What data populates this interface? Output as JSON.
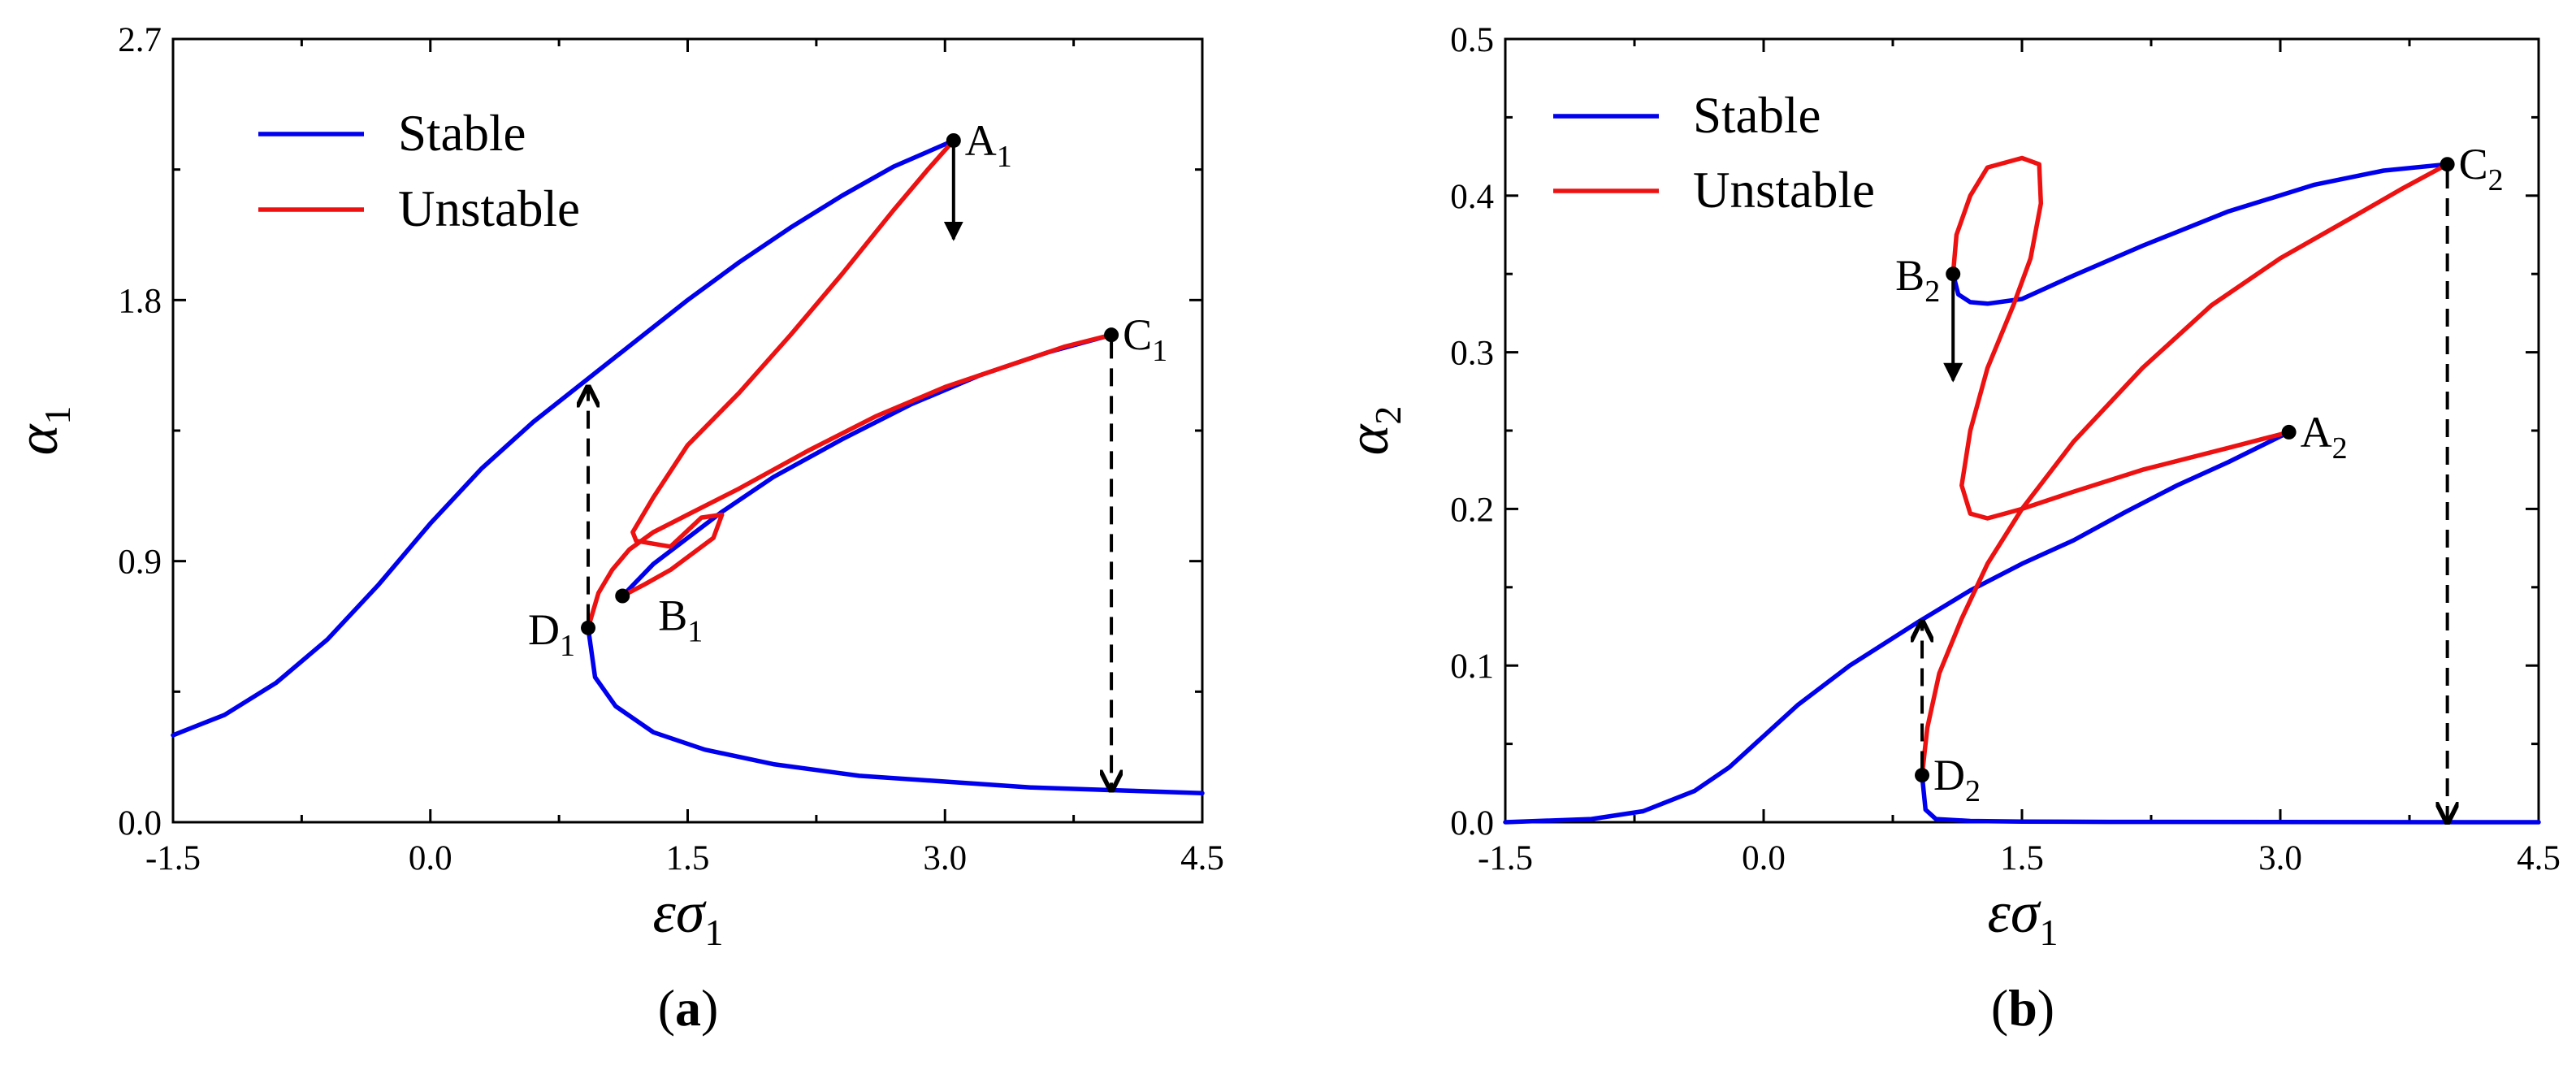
{
  "colors": {
    "stable": "#0000ee",
    "unstable": "#ee1111",
    "axis": "#000000"
  },
  "chart_data": [
    {
      "type": "line",
      "panel_label": "(a)",
      "panel_letter": "a",
      "xlabel": "εσ",
      "xlabel_sub": "1",
      "ylabel": "α",
      "ylabel_sub": "1",
      "xlim": [
        -1.5,
        4.5
      ],
      "ylim": [
        0.0,
        2.7
      ],
      "xticks": [
        -1.5,
        0.0,
        1.5,
        3.0,
        4.5
      ],
      "xtick_labels": [
        "-1.5",
        "0.0",
        "1.5",
        "3.0",
        "4.5"
      ],
      "yticks": [
        0.0,
        0.9,
        1.8,
        2.7
      ],
      "ytick_labels": [
        "0.0",
        "0.9",
        "1.8",
        "2.7"
      ],
      "legend": {
        "position": "top-left",
        "entries": [
          {
            "label": "Stable",
            "series": "stable"
          },
          {
            "label": "Unstable",
            "series": "unstable"
          }
        ]
      },
      "series": [
        {
          "name": "Stable",
          "kind": "stable",
          "points": [
            [
              -1.5,
              0.3
            ],
            [
              -1.2,
              0.37
            ],
            [
              -0.9,
              0.48
            ],
            [
              -0.6,
              0.63
            ],
            [
              -0.3,
              0.82
            ],
            [
              0.0,
              1.03
            ],
            [
              0.3,
              1.22
            ],
            [
              0.6,
              1.38
            ],
            [
              0.9,
              1.52
            ],
            [
              1.2,
              1.66
            ],
            [
              1.5,
              1.8
            ],
            [
              1.8,
              1.93
            ],
            [
              2.1,
              2.05
            ],
            [
              2.4,
              2.16
            ],
            [
              2.7,
              2.26
            ],
            [
              3.05,
              2.35
            ]
          ]
        },
        {
          "name": "Stable",
          "kind": "stable",
          "points": [
            [
              1.12,
              0.78
            ],
            [
              1.3,
              0.89
            ],
            [
              1.5,
              0.98
            ],
            [
              1.7,
              1.07
            ],
            [
              2.0,
              1.19
            ],
            [
              2.4,
              1.32
            ],
            [
              2.8,
              1.44
            ],
            [
              3.2,
              1.54
            ],
            [
              3.6,
              1.62
            ],
            [
              3.97,
              1.68
            ]
          ]
        },
        {
          "name": "Stable",
          "kind": "stable",
          "points": [
            [
              0.92,
              0.67
            ],
            [
              0.96,
              0.5
            ],
            [
              1.08,
              0.4
            ],
            [
              1.3,
              0.31
            ],
            [
              1.6,
              0.25
            ],
            [
              2.0,
              0.2
            ],
            [
              2.5,
              0.16
            ],
            [
              3.0,
              0.14
            ],
            [
              3.5,
              0.12
            ],
            [
              4.0,
              0.11
            ],
            [
              4.5,
              0.1
            ]
          ]
        },
        {
          "name": "Unstable",
          "kind": "unstable",
          "points": [
            [
              3.05,
              2.35
            ],
            [
              2.9,
              2.25
            ],
            [
              2.7,
              2.11
            ],
            [
              2.4,
              1.89
            ],
            [
              2.1,
              1.68
            ],
            [
              1.8,
              1.48
            ],
            [
              1.5,
              1.3
            ],
            [
              1.3,
              1.12
            ],
            [
              1.18,
              1.0
            ],
            [
              1.2,
              0.97
            ],
            [
              1.4,
              0.95
            ],
            [
              1.58,
              1.05
            ],
            [
              1.7,
              1.06
            ],
            [
              1.65,
              0.98
            ],
            [
              1.4,
              0.87
            ],
            [
              1.25,
              0.82
            ],
            [
              1.12,
              0.78
            ]
          ]
        },
        {
          "name": "Unstable",
          "kind": "unstable",
          "points": [
            [
              0.92,
              0.67
            ],
            [
              0.98,
              0.79
            ],
            [
              1.06,
              0.87
            ],
            [
              1.16,
              0.94
            ],
            [
              1.3,
              1.0
            ],
            [
              1.5,
              1.06
            ],
            [
              1.8,
              1.15
            ],
            [
              2.2,
              1.28
            ],
            [
              2.6,
              1.4
            ],
            [
              3.0,
              1.5
            ],
            [
              3.4,
              1.58
            ],
            [
              3.7,
              1.64
            ],
            [
              3.97,
              1.68
            ]
          ]
        }
      ],
      "points": [
        {
          "name": "A",
          "sub": "1",
          "x": 3.05,
          "y": 2.35,
          "label_side": "right"
        },
        {
          "name": "B",
          "sub": "1",
          "x": 1.12,
          "y": 0.78,
          "label_side": "below-right"
        },
        {
          "name": "C",
          "sub": "1",
          "x": 3.97,
          "y": 1.68,
          "label_side": "right"
        },
        {
          "name": "D",
          "sub": "1",
          "x": 0.92,
          "y": 0.67,
          "label_side": "left"
        }
      ],
      "arrows": [
        {
          "style": "solid",
          "x": 3.05,
          "from_y": 2.33,
          "to_y": 2.01
        },
        {
          "style": "dashed",
          "x": 0.92,
          "from_y": 0.69,
          "to_y": 1.5
        },
        {
          "style": "dashed",
          "x": 3.97,
          "from_y": 1.66,
          "to_y": 0.11
        }
      ]
    },
    {
      "type": "line",
      "panel_label": "(b)",
      "panel_letter": "b",
      "xlabel": "εσ",
      "xlabel_sub": "1",
      "ylabel": "α",
      "ylabel_sub": "2",
      "xlim": [
        -1.5,
        4.5
      ],
      "ylim": [
        0.0,
        0.5
      ],
      "xticks": [
        -1.5,
        0.0,
        1.5,
        3.0,
        4.5
      ],
      "xtick_labels": [
        "-1.5",
        "0.0",
        "1.5",
        "3.0",
        "4.5"
      ],
      "yticks": [
        0.0,
        0.1,
        0.2,
        0.3,
        0.4,
        0.5
      ],
      "ytick_labels": [
        "0.0",
        "0.1",
        "0.2",
        "0.3",
        "0.4",
        "0.5"
      ],
      "legend": {
        "position": "top-left",
        "entries": [
          {
            "label": "Stable",
            "series": "stable"
          },
          {
            "label": "Unstable",
            "series": "unstable"
          }
        ]
      },
      "series": [
        {
          "name": "Stable",
          "kind": "stable",
          "points": [
            [
              -1.5,
              0.0
            ],
            [
              -1.0,
              0.002
            ],
            [
              -0.7,
              0.007
            ],
            [
              -0.4,
              0.02
            ],
            [
              -0.2,
              0.035
            ],
            [
              0.0,
              0.055
            ],
            [
              0.2,
              0.075
            ],
            [
              0.5,
              0.1
            ],
            [
              0.9,
              0.128
            ],
            [
              1.2,
              0.148
            ],
            [
              1.5,
              0.165
            ],
            [
              1.8,
              0.18
            ],
            [
              2.1,
              0.198
            ],
            [
              2.4,
              0.215
            ],
            [
              2.7,
              0.23
            ],
            [
              3.05,
              0.249
            ]
          ]
        },
        {
          "name": "Stable",
          "kind": "stable",
          "points": [
            [
              0.92,
              0.03
            ],
            [
              0.94,
              0.008
            ],
            [
              1.0,
              0.002
            ],
            [
              1.2,
              0.0008
            ],
            [
              1.5,
              0.0004
            ],
            [
              2.0,
              0.0002
            ],
            [
              3.0,
              0.0001
            ],
            [
              4.5,
              0.0
            ]
          ]
        },
        {
          "name": "Stable",
          "kind": "stable",
          "points": [
            [
              1.1,
              0.35
            ],
            [
              1.13,
              0.337
            ],
            [
              1.2,
              0.332
            ],
            [
              1.3,
              0.331
            ],
            [
              1.5,
              0.334
            ],
            [
              1.8,
              0.349
            ],
            [
              2.2,
              0.368
            ],
            [
              2.7,
              0.39
            ],
            [
              3.2,
              0.407
            ],
            [
              3.6,
              0.416
            ],
            [
              3.97,
              0.42
            ]
          ]
        },
        {
          "name": "Unstable",
          "kind": "unstable",
          "points": [
            [
              1.1,
              0.35
            ],
            [
              1.12,
              0.375
            ],
            [
              1.2,
              0.4
            ],
            [
              1.3,
              0.418
            ],
            [
              1.5,
              0.424
            ],
            [
              1.6,
              0.42
            ],
            [
              1.61,
              0.395
            ],
            [
              1.55,
              0.36
            ],
            [
              1.45,
              0.33
            ],
            [
              1.3,
              0.29
            ],
            [
              1.2,
              0.25
            ],
            [
              1.15,
              0.215
            ],
            [
              1.2,
              0.197
            ],
            [
              1.3,
              0.194
            ],
            [
              1.5,
              0.2
            ],
            [
              1.8,
              0.211
            ],
            [
              2.2,
              0.225
            ],
            [
              2.7,
              0.239
            ],
            [
              3.05,
              0.249
            ]
          ]
        },
        {
          "name": "Unstable",
          "kind": "unstable",
          "points": [
            [
              0.92,
              0.03
            ],
            [
              0.95,
              0.06
            ],
            [
              1.02,
              0.095
            ],
            [
              1.15,
              0.13
            ],
            [
              1.3,
              0.165
            ],
            [
              1.5,
              0.2
            ],
            [
              1.8,
              0.243
            ],
            [
              2.2,
              0.29
            ],
            [
              2.6,
              0.33
            ],
            [
              3.0,
              0.36
            ],
            [
              3.4,
              0.385
            ],
            [
              3.7,
              0.404
            ],
            [
              3.97,
              0.42
            ]
          ]
        }
      ],
      "points": [
        {
          "name": "A",
          "sub": "2",
          "x": 3.05,
          "y": 0.249,
          "label_side": "right"
        },
        {
          "name": "B",
          "sub": "2",
          "x": 1.1,
          "y": 0.35,
          "label_side": "left"
        },
        {
          "name": "C",
          "sub": "2",
          "x": 3.97,
          "y": 0.42,
          "label_side": "right"
        },
        {
          "name": "D",
          "sub": "2",
          "x": 0.92,
          "y": 0.03,
          "label_side": "right"
        }
      ],
      "arrows": [
        {
          "style": "solid",
          "x": 1.1,
          "from_y": 0.346,
          "to_y": 0.282
        },
        {
          "style": "dashed",
          "x": 0.92,
          "from_y": 0.034,
          "to_y": 0.128
        },
        {
          "style": "dashed",
          "x": 3.97,
          "from_y": 0.416,
          "to_y": 0.0
        }
      ]
    }
  ]
}
